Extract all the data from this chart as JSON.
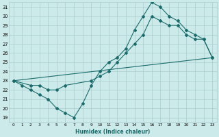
{
  "xlabel": "Humidex (Indice chaleur)",
  "ylabel": "",
  "background_color": "#cceaea",
  "grid_color": "#aacccc",
  "line_color": "#1a6b6b",
  "xlim": [
    -0.5,
    23.5
  ],
  "ylim": [
    18.5,
    31.5
  ],
  "xticks": [
    0,
    1,
    2,
    3,
    4,
    5,
    6,
    7,
    8,
    9,
    10,
    11,
    12,
    13,
    14,
    15,
    16,
    17,
    18,
    19,
    20,
    21,
    22,
    23
  ],
  "yticks": [
    19,
    20,
    21,
    22,
    23,
    24,
    25,
    26,
    27,
    28,
    29,
    30,
    31
  ],
  "line1_x": [
    0,
    1,
    2,
    3,
    4,
    5,
    6,
    7,
    8,
    9,
    10,
    11,
    12,
    13,
    14,
    15,
    16,
    17,
    18,
    19,
    20,
    21,
    22,
    23
  ],
  "line1_y": [
    23,
    22.5,
    22,
    21.5,
    21,
    20,
    19.5,
    19,
    20.5,
    22.5,
    24,
    25,
    25.5,
    26.5,
    28.5,
    30,
    31.5,
    31,
    30,
    29.5,
    28.5,
    28,
    27.5,
    25.5
  ],
  "line2_x": [
    0,
    2,
    3,
    4,
    5,
    6,
    9,
    10,
    11,
    12,
    13,
    14,
    15,
    16,
    17,
    18,
    19,
    20,
    21,
    22,
    23
  ],
  "line2_y": [
    23,
    22.5,
    22.5,
    22,
    22,
    22.5,
    23,
    23.5,
    24,
    25,
    26,
    27,
    28,
    30,
    29.5,
    29,
    29,
    28,
    27.5,
    27.5,
    25.5
  ],
  "line3_x": [
    0,
    23
  ],
  "line3_y": [
    23,
    25.5
  ]
}
